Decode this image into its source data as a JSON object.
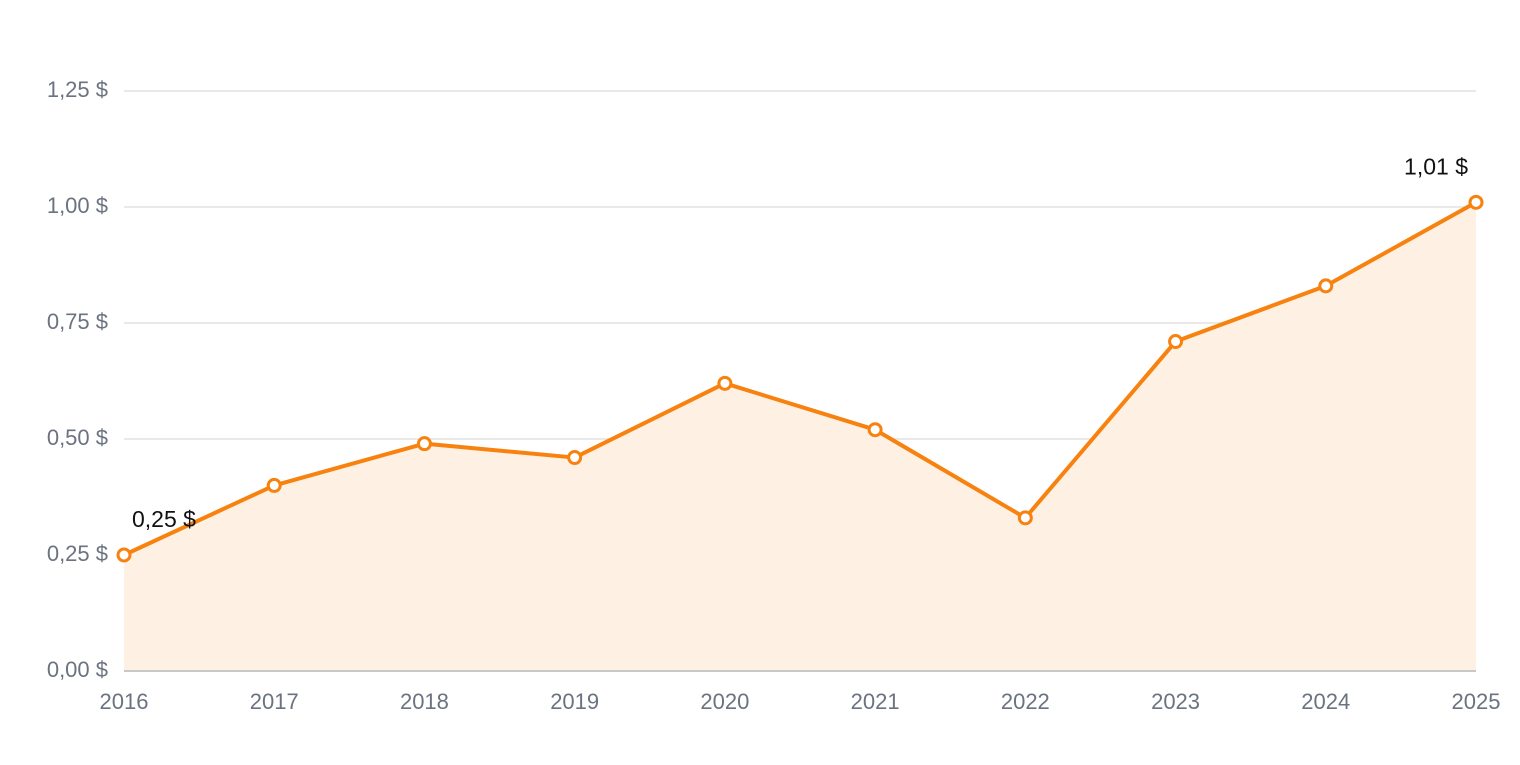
{
  "chart_data": {
    "type": "line",
    "categories": [
      "2016",
      "2017",
      "2018",
      "2019",
      "2020",
      "2021",
      "2022",
      "2023",
      "2024",
      "2025"
    ],
    "values": [
      0.25,
      0.4,
      0.49,
      0.46,
      0.62,
      0.52,
      0.33,
      0.71,
      0.83,
      1.01
    ],
    "value_labels": [
      "0,25 $",
      null,
      null,
      null,
      null,
      null,
      null,
      null,
      null,
      "1,01 $"
    ],
    "color": "#f7820f",
    "area_color": "#fef1e4",
    "ylim": [
      0,
      1.25
    ],
    "yticks": [
      {
        "value": 0,
        "label": "0,00 $"
      },
      {
        "value": 0.25,
        "label": "0,25 $"
      },
      {
        "value": 0.5,
        "label": "0,50 $"
      },
      {
        "value": 0.75,
        "label": "0,75 $"
      },
      {
        "value": 1,
        "label": "1,00 $"
      },
      {
        "value": 1.25,
        "label": "1,25 $"
      }
    ],
    "grid": true
  }
}
